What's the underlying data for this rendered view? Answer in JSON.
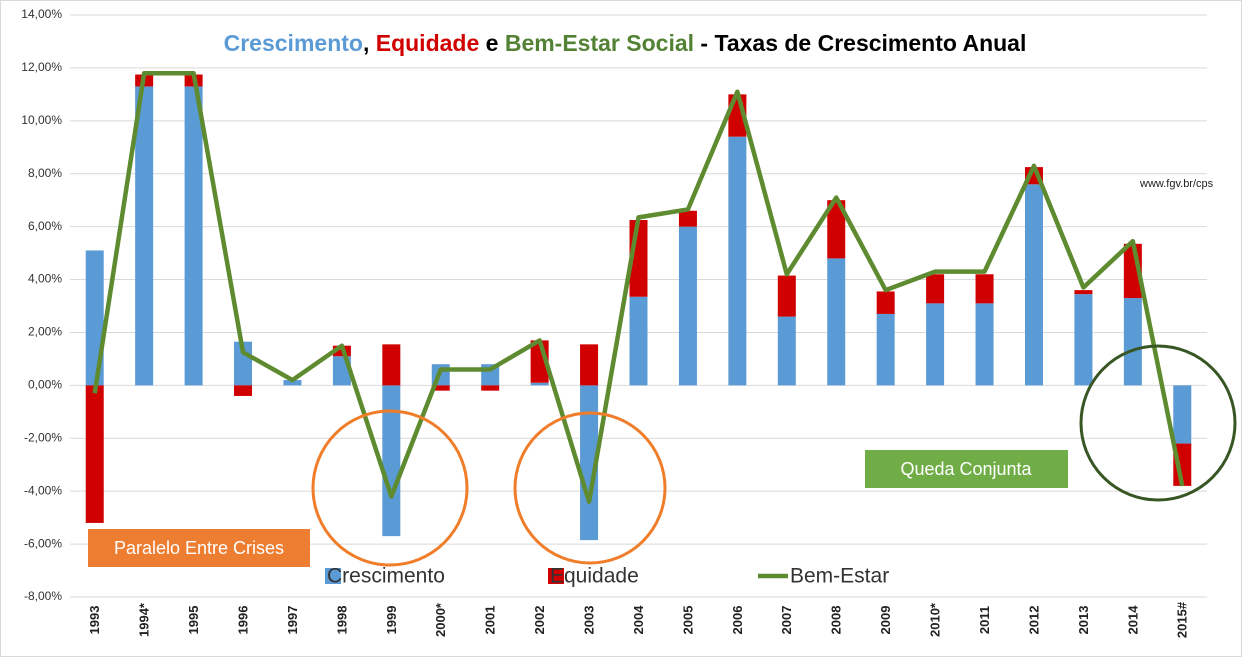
{
  "chart_data": {
    "type": "bar-line",
    "title_parts": [
      {
        "text": "Crescimento",
        "color": "#5b9bd5"
      },
      {
        "text": ", ",
        "color": "#000000"
      },
      {
        "text": "Equidade",
        "color": "#d00000"
      },
      {
        "text": " e ",
        "color": "#000000"
      },
      {
        "text": "Bem-Estar Social",
        "color": "#548235"
      },
      {
        "text": " - Taxas de Crescimento Anual",
        "color": "#000000"
      }
    ],
    "source": "www.fgv.br/cps",
    "annotations": [
      "Paralelo Entre Crises",
      "Queda Conjunta"
    ],
    "categories": [
      "1993",
      "1994*",
      "1995",
      "1996",
      "1997",
      "1998",
      "1999",
      "2000*",
      "2001",
      "2002",
      "2003",
      "2004",
      "2005",
      "2006",
      "2007",
      "2008",
      "2009",
      "2010*",
      "2011",
      "2012",
      "2013",
      "2014",
      "2015#"
    ],
    "series": [
      {
        "name": "Crescimento",
        "type": "bar",
        "color": "#5b9bd5",
        "values": [
          5.1,
          11.3,
          11.3,
          1.65,
          0.2,
          1.1,
          -5.7,
          0.8,
          0.8,
          0.1,
          -5.85,
          3.35,
          6.0,
          9.4,
          2.6,
          4.8,
          2.7,
          3.1,
          3.1,
          7.6,
          3.45,
          3.3,
          -2.2
        ]
      },
      {
        "name": "Equidade",
        "type": "bar",
        "color": "#d00000",
        "values": [
          -5.2,
          0.45,
          0.45,
          -0.4,
          0,
          0.4,
          1.55,
          -0.2,
          -0.2,
          1.6,
          1.55,
          2.9,
          0.6,
          1.6,
          1.55,
          2.2,
          0.85,
          1.1,
          1.1,
          0.65,
          0.15,
          2.05,
          -1.6
        ]
      },
      {
        "name": "Bem-Estar",
        "type": "line",
        "color": "#5e8b2f",
        "values": [
          -0.3,
          11.8,
          11.8,
          1.25,
          0.2,
          1.5,
          -4.2,
          0.6,
          0.6,
          1.7,
          -4.4,
          6.35,
          6.65,
          11.1,
          4.2,
          7.1,
          3.6,
          4.3,
          4.3,
          8.3,
          3.7,
          5.45,
          -3.8
        ]
      }
    ],
    "ylim": [
      -8,
      14
    ],
    "yticks": [
      {
        "value": -8,
        "label": "-8,00%"
      },
      {
        "value": -6,
        "label": "-6,00%"
      },
      {
        "value": -4,
        "label": "-4,00%"
      },
      {
        "value": -2,
        "label": "-2,00%"
      },
      {
        "value": 0,
        "label": "0,00%"
      },
      {
        "value": 2,
        "label": "2,00%"
      },
      {
        "value": 4,
        "label": "4,00%"
      },
      {
        "value": 6,
        "label": "6,00%"
      },
      {
        "value": 8,
        "label": "8,00%"
      },
      {
        "value": 10,
        "label": "10,00%"
      },
      {
        "value": 12,
        "label": "12,00%"
      },
      {
        "value": 14,
        "label": "14,00%"
      }
    ],
    "grid": true
  }
}
